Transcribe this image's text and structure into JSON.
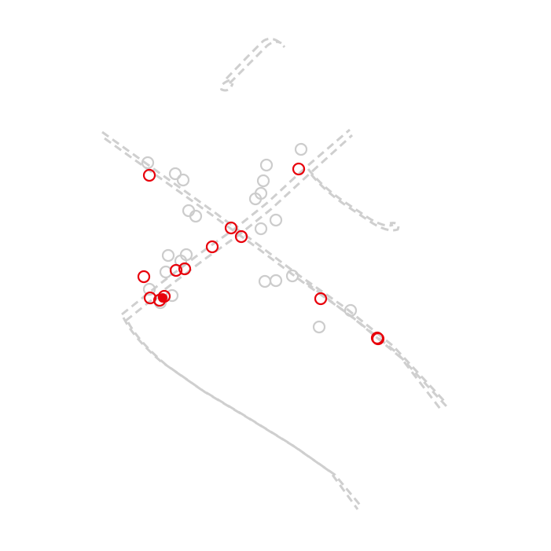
{
  "colors": {
    "background": "#ffffff",
    "road": "#cfcfcf",
    "marker_inactive": "#cccccc",
    "marker_active": "#e8000b"
  },
  "legend": {},
  "labels": {}
}
